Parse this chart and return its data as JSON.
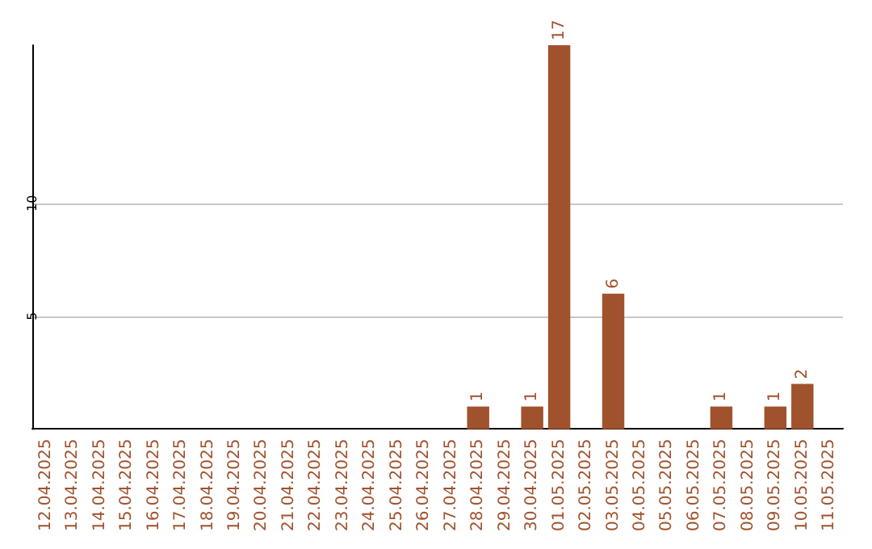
{
  "chart_data": {
    "type": "bar",
    "categories": [
      "12.04.2025",
      "13.04.2025",
      "14.04.2025",
      "15.04.2025",
      "16.04.2025",
      "17.04.2025",
      "18.04.2025",
      "19.04.2025",
      "20.04.2025",
      "21.04.2025",
      "22.04.2025",
      "23.04.2025",
      "24.04.2025",
      "25.04.2025",
      "26.04.2025",
      "27.04.2025",
      "28.04.2025",
      "29.04.2025",
      "30.04.2025",
      "01.05.2025",
      "02.05.2025",
      "03.05.2025",
      "04.05.2025",
      "05.05.2025",
      "06.05.2025",
      "07.05.2025",
      "08.05.2025",
      "09.05.2025",
      "10.05.2025",
      "11.05.2025"
    ],
    "values": [
      0,
      0,
      0,
      0,
      0,
      0,
      0,
      0,
      0,
      0,
      0,
      0,
      0,
      0,
      0,
      0,
      1,
      0,
      1,
      17,
      0,
      6,
      0,
      0,
      0,
      1,
      0,
      1,
      2,
      0
    ],
    "value_labels": [
      null,
      null,
      null,
      null,
      null,
      null,
      null,
      null,
      null,
      null,
      null,
      null,
      null,
      null,
      null,
      null,
      "1",
      null,
      "1",
      "17",
      null,
      "6",
      null,
      null,
      null,
      "1",
      null,
      "1",
      "2",
      null
    ],
    "color": "#a0522d",
    "ylim": [
      0,
      17
    ],
    "yticks": [
      5,
      10
    ],
    "grid": "y"
  }
}
